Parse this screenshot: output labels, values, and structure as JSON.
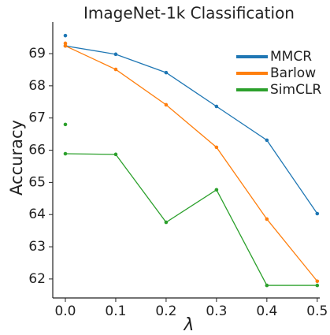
{
  "chart_data": {
    "type": "line",
    "title": "ImageNet-1k Classification",
    "x_label": "λ",
    "y_label": "Accuracy",
    "x": [
      0,
      0,
      0,
      0.1,
      0.2,
      0.3,
      0.4,
      0.5
    ],
    "series": [
      {
        "name": "MMCR",
        "color": "#1f77b4",
        "values": [
          69.56,
          null,
          69.24,
          68.98,
          68.41,
          67.36,
          66.31,
          64.03
        ]
      },
      {
        "name": "Barlow",
        "color": "#ff7f0e",
        "values": [
          69.32,
          null,
          69.24,
          68.51,
          67.41,
          66.09,
          63.86,
          61.93
        ]
      },
      {
        "name": "SimCLR",
        "color": "#2ca02c",
        "values": [
          66.8,
          null,
          65.89,
          65.87,
          63.76,
          64.77,
          61.8,
          61.8
        ]
      }
    ],
    "xlim": [
      -0.025,
      0.505
    ],
    "ylim": [
      61.41,
      69.98
    ],
    "xticks": [
      {
        "value": 0,
        "label": "0.0"
      },
      0.1,
      0.2,
      0.3,
      0.4,
      0.5
    ],
    "yticks": [
      62,
      63,
      64,
      65,
      66,
      67,
      68,
      69
    ],
    "legend": "upper-right"
  }
}
